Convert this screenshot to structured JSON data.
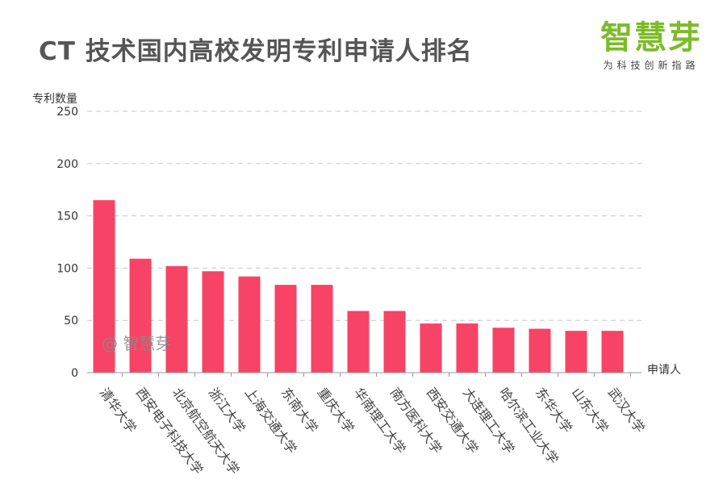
{
  "brand": {
    "name": "智慧芽",
    "slogan": "为科技创新指路"
  },
  "watermark": "@ 智慧芽",
  "chart_data": {
    "type": "bar",
    "title": "CT 技术国内高校发明专利申请人排名",
    "ylabel": "专利数量",
    "xlabel": "申请人",
    "ylim": [
      0,
      250
    ],
    "yticks": [
      "0",
      "50",
      "100",
      "150",
      "200",
      "250"
    ],
    "grid": true,
    "bar_color": "#f74366",
    "categories": [
      "清华大学",
      "西安电子科技大学",
      "北京航空航天大学",
      "浙江大学",
      "上海交通大学",
      "东南大学",
      "重庆大学",
      "华南理工大学",
      "南方医科大学",
      "西安交通大学",
      "大连理工大学",
      "哈尔滨工业大学",
      "东华大学",
      "山东大学",
      "武汉大学"
    ],
    "values": [
      165,
      109,
      102,
      97,
      92,
      84,
      84,
      59,
      59,
      47,
      47,
      43,
      42,
      40,
      40
    ]
  }
}
